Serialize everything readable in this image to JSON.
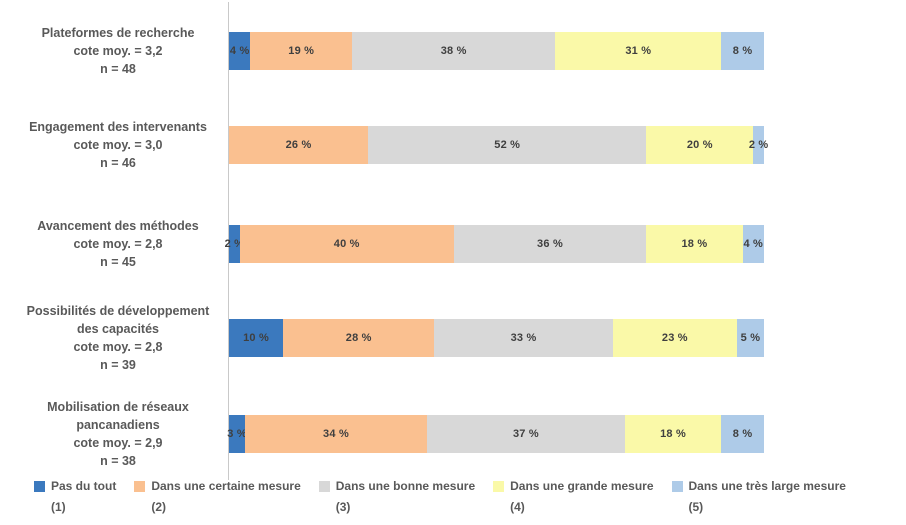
{
  "chart_data": {
    "type": "bar",
    "orientation": "horizontal",
    "stacked": true,
    "title": "",
    "xlabel": "",
    "ylabel": "",
    "xlim": [
      0,
      100
    ],
    "grid": false,
    "value_suffix": " %",
    "legend_position": "bottom",
    "axis_line_color": "#c9c9c9",
    "label_color": "#595959",
    "data_label_color": "#3f3f3f",
    "categories": [
      [
        "Plateformes de recherche",
        "cote moy. = 3,2",
        "n = 48"
      ],
      [
        "Engagement des intervenants",
        "cote moy. = 3,0",
        "n = 46"
      ],
      [
        "Avancement des méthodes",
        "cote moy. = 2,8",
        "n = 45"
      ],
      [
        "Possibilités de développement",
        "des capacités",
        "cote moy. = 2,8",
        "n = 39"
      ],
      [
        "Mobilisation de réseaux",
        "pancanadiens",
        "cote moy. = 2,9",
        "n = 38"
      ]
    ],
    "series": [
      {
        "name": "Pas du tout",
        "scale": "(1)",
        "color": "#3b79be",
        "values": [
          4,
          0,
          2,
          10,
          3
        ]
      },
      {
        "name": "Dans une certaine mesure",
        "scale": "(2)",
        "color": "#fac090",
        "values": [
          19,
          26,
          40,
          28,
          34
        ]
      },
      {
        "name": "Dans une bonne mesure",
        "scale": "(3)",
        "color": "#d8d8d8",
        "values": [
          38,
          52,
          36,
          33,
          37
        ]
      },
      {
        "name": "Dans une grande mesure",
        "scale": "(4)",
        "color": "#faf9a8",
        "values": [
          31,
          20,
          18,
          23,
          18
        ]
      },
      {
        "name": "Dans une très large mesure",
        "scale": "(5)",
        "color": "#aecbe8",
        "values": [
          8,
          2,
          4,
          5,
          8
        ]
      }
    ]
  }
}
